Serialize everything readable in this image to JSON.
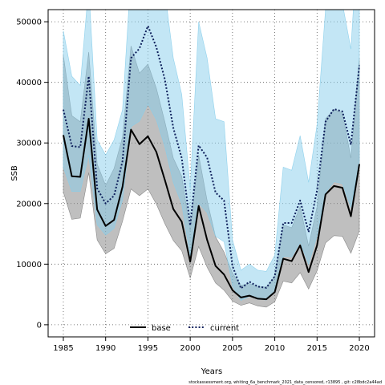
{
  "chart_data": {
    "type": "line",
    "title": "",
    "xlabel": "Years",
    "ylabel": "SSB",
    "xlim": [
      1983.2,
      2021.8
    ],
    "ylim": [
      -2000,
      52000
    ],
    "xticks": [
      1985,
      1990,
      1995,
      2000,
      2005,
      2010,
      2015,
      2020
    ],
    "yticks": [
      0,
      10000,
      20000,
      30000,
      40000,
      50000
    ],
    "grid": true,
    "legend_position": "bottom-center",
    "footnote": "stockassessment.org, whiting_6a_benchmark_2021_data_censored, r13895 , git: c28bdc2a44ad",
    "x": [
      1985,
      1986,
      1987,
      1988,
      1989,
      1990,
      1991,
      1992,
      1993,
      1994,
      1995,
      1996,
      1997,
      1998,
      1999,
      2000,
      2001,
      2002,
      2003,
      2004,
      2005,
      2006,
      2007,
      2008,
      2009,
      2010,
      2011,
      2012,
      2013,
      2014,
      2015,
      2016,
      2017,
      2018,
      2019,
      2020
    ],
    "series": [
      {
        "name": "base",
        "color": "#000000",
        "style": "solid",
        "band_color": "#808080",
        "values": [
          31300,
          24500,
          24400,
          34000,
          19000,
          16300,
          17300,
          22800,
          32200,
          29800,
          31100,
          28500,
          23900,
          19100,
          17000,
          10400,
          19600,
          14000,
          9700,
          8300,
          5700,
          4500,
          4800,
          4300,
          4200,
          5400,
          10900,
          10500,
          13100,
          8700,
          13100,
          21500,
          22900,
          22600,
          17900,
          26500
        ],
        "lower": [
          21900,
          17400,
          17600,
          25100,
          14000,
          11700,
          12600,
          17100,
          22400,
          21300,
          22400,
          19900,
          16700,
          13900,
          12200,
          7700,
          12900,
          9500,
          6900,
          5700,
          3900,
          3200,
          3600,
          3100,
          2900,
          3800,
          7200,
          6900,
          8600,
          5900,
          8900,
          13500,
          14700,
          14600,
          11800,
          15500
        ],
        "upper": [
          44500,
          34500,
          33500,
          45000,
          26500,
          23000,
          25800,
          31000,
          46000,
          41500,
          43000,
          39000,
          33500,
          27500,
          24500,
          15500,
          28000,
          20500,
          14500,
          12000,
          8500,
          6500,
          6800,
          6300,
          6200,
          8000,
          16500,
          16000,
          19500,
          13000,
          19500,
          34000,
          35500,
          35000,
          27500,
          44000
        ]
      },
      {
        "name": "current",
        "color": "#0e1f5b",
        "style": "dotted",
        "band_color": "#87ceeb",
        "values": [
          35500,
          29500,
          29300,
          41000,
          22500,
          20000,
          21300,
          27000,
          44000,
          45600,
          49300,
          45800,
          40500,
          32500,
          27500,
          16400,
          29600,
          27600,
          21800,
          20500,
          9700,
          6000,
          7100,
          6300,
          6100,
          8000,
          16800,
          16800,
          20500,
          15300,
          22200,
          33500,
          35600,
          35200,
          29700,
          42800
        ],
        "lower": [
          26000,
          22000,
          22000,
          28000,
          16500,
          14800,
          15900,
          20600,
          32700,
          33600,
          36400,
          33800,
          29400,
          23500,
          19900,
          11400,
          20100,
          18500,
          14600,
          13700,
          6400,
          4000,
          4700,
          4200,
          4100,
          5300,
          11300,
          11200,
          13600,
          10000,
          14700,
          21800,
          23600,
          23300,
          19400,
          26900
        ],
        "upper": [
          48500,
          41000,
          39500,
          56000,
          30500,
          28000,
          30500,
          35500,
          58000,
          61000,
          66000,
          62000,
          55000,
          44000,
          38000,
          22500,
          50000,
          44000,
          34000,
          33500,
          14000,
          9000,
          10000,
          9000,
          8800,
          11500,
          26000,
          25500,
          31200,
          23500,
          33000,
          52000,
          54000,
          53000,
          45500,
          68000
        ]
      }
    ]
  }
}
